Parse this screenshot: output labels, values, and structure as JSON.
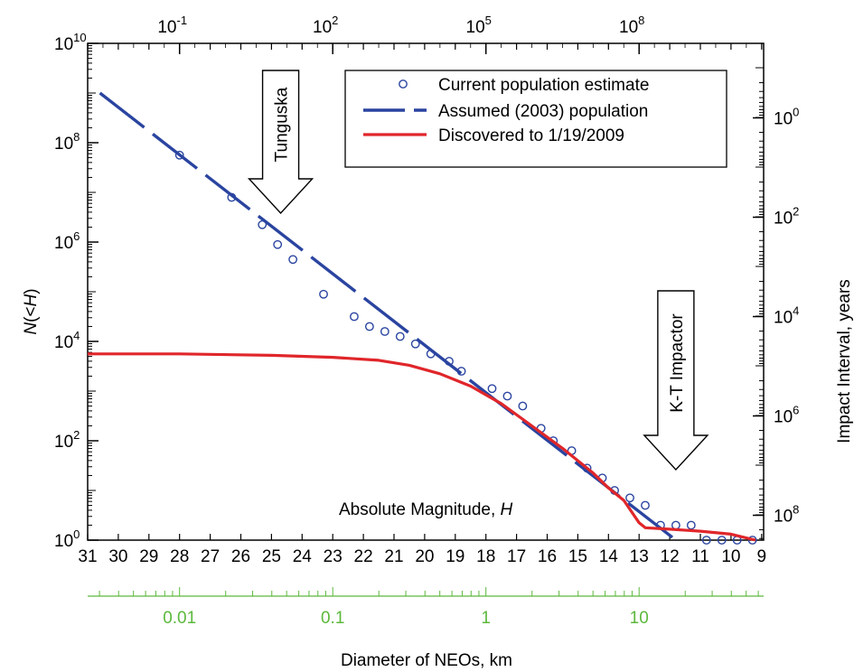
{
  "chart_data": {
    "type": "line",
    "title": "",
    "xlabel_inside": "Absolute Magnitude,",
    "xlabel_inside_var": "H",
    "ylabel": "N(<H)",
    "ylabel_prefix": "N",
    "ylabel_suffix": "(<H)",
    "y2label": "Impact Interval, years",
    "x2label": "Diameter of NEOs, km",
    "x_range": [
      31,
      9
    ],
    "y_range_log10": [
      0,
      10
    ],
    "bottom_ticks": [
      "31",
      "30",
      "29",
      "28",
      "27",
      "26",
      "25",
      "24",
      "23",
      "22",
      "21",
      "20",
      "19",
      "18",
      "17",
      "16",
      "15",
      "14",
      "13",
      "12",
      "11",
      "10",
      "9"
    ],
    "left_ticks": [
      {
        "base": "10",
        "exp": "0",
        "val": 0
      },
      {
        "base": "10",
        "exp": "2",
        "val": 2
      },
      {
        "base": "10",
        "exp": "4",
        "val": 4
      },
      {
        "base": "10",
        "exp": "6",
        "val": 6
      },
      {
        "base": "10",
        "exp": "8",
        "val": 8
      },
      {
        "base": "10",
        "exp": "10",
        "val": 10
      }
    ],
    "top_ticks": [
      {
        "base": "10",
        "exp": "-1",
        "h": 28
      },
      {
        "base": "10",
        "exp": "2",
        "h": 23
      },
      {
        "base": "10",
        "exp": "5",
        "h": 18
      },
      {
        "base": "10",
        "exp": "8",
        "h": 13
      }
    ],
    "right_ticks": [
      {
        "base": "10",
        "exp": "0",
        "val": 8.5
      },
      {
        "base": "10",
        "exp": "2",
        "val": 6.5
      },
      {
        "base": "10",
        "exp": "4",
        "val": 4.5
      },
      {
        "base": "10",
        "exp": "6",
        "val": 2.5
      },
      {
        "base": "10",
        "exp": "8",
        "val": 0.5
      }
    ],
    "diameter_ticks": [
      {
        "label": "0.01",
        "h": 28
      },
      {
        "label": "0.1",
        "h": 23
      },
      {
        "label": "1",
        "h": 18
      },
      {
        "label": "10",
        "h": 13
      }
    ],
    "series": [
      {
        "name": "Current population estimate",
        "style": "circles",
        "color": "#2a44a0",
        "x": [
          28,
          26.3,
          25.3,
          24.8,
          24.3,
          23.3,
          22.3,
          21.8,
          21.3,
          20.8,
          20.3,
          19.8,
          19.2,
          18.8,
          17.8,
          17.3,
          16.8,
          16.2,
          15.8,
          15.2,
          14.7,
          14.2,
          13.8,
          13.3,
          12.8,
          12.3,
          11.8,
          11.3,
          10.8,
          10.3,
          9.8,
          9.3
        ],
        "y": [
          7.75,
          6.9,
          6.35,
          5.95,
          5.65,
          4.95,
          4.5,
          4.3,
          4.2,
          4.1,
          3.95,
          3.75,
          3.6,
          3.4,
          3.05,
          2.9,
          2.7,
          2.25,
          2.0,
          1.8,
          1.45,
          1.25,
          1.0,
          0.85,
          0.7,
          0.3,
          0.3,
          0.3,
          0.0,
          0.0,
          0.0,
          0.0
        ]
      },
      {
        "name": "Assumed (2003) population",
        "style": "dashed",
        "color": "#2a44a0",
        "x": [
          30.6,
          11.8
        ],
        "y": [
          9.0,
          0.0
        ]
      },
      {
        "name": "Discovered to 1/19/2009",
        "style": "solid",
        "color": "#e0262a",
        "x": [
          31,
          28,
          25,
          23,
          21.5,
          20.5,
          19.5,
          18.5,
          17.5,
          16.5,
          15.5,
          14.5,
          14,
          13.5,
          13,
          12.8,
          12,
          11,
          10,
          9.2
        ],
        "y": [
          3.75,
          3.75,
          3.72,
          3.68,
          3.62,
          3.52,
          3.35,
          3.1,
          2.75,
          2.3,
          1.85,
          1.35,
          1.05,
          0.8,
          0.35,
          0.25,
          0.22,
          0.18,
          0.12,
          0.0
        ]
      }
    ],
    "annotations": [
      {
        "text": "Tunguska",
        "h": 24.7
      },
      {
        "text": "K-T Impactor",
        "h": 11.8
      }
    ],
    "legend_position": "top-right",
    "grid": false,
    "colors": {
      "blue": "#2a44a0",
      "red": "#e0262a",
      "green": "#5cb83c"
    }
  }
}
